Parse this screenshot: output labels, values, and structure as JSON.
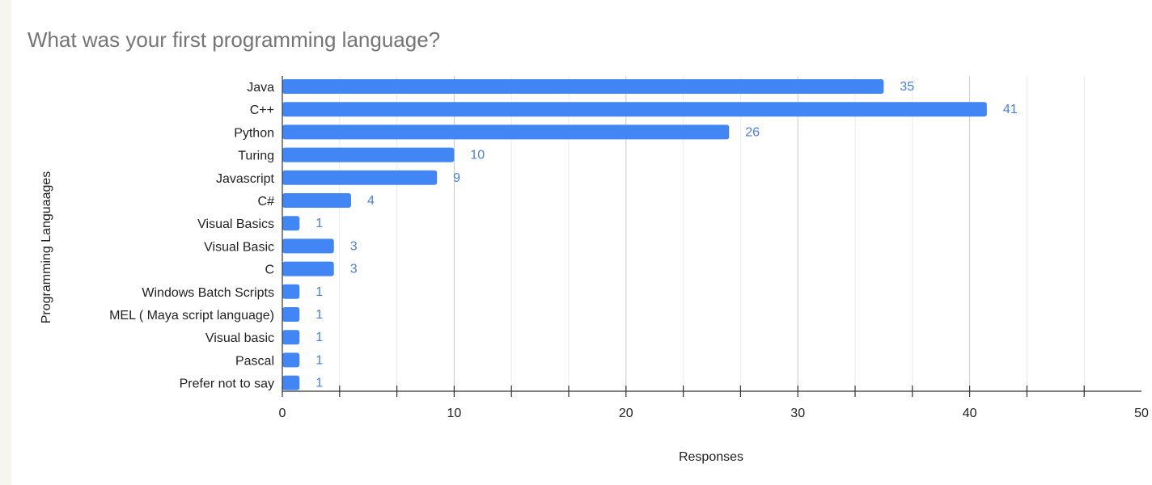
{
  "chart_data": {
    "type": "bar",
    "orientation": "horizontal",
    "title": "What was your first programming language?",
    "xlabel": "Responses",
    "ylabel": "Programming Languaages",
    "xlim": [
      0,
      50
    ],
    "x_ticks": [
      0,
      10,
      20,
      30,
      40,
      50
    ],
    "grid": true,
    "legend": "none",
    "bar_color": "#4285f4",
    "label_color": "#4a7fe0",
    "categories": [
      "Java",
      "C++",
      "Python",
      "Turing",
      "Javascript",
      "C#",
      "Visual Basics",
      "Visual Basic",
      "C",
      "Windows Batch Scripts",
      "MEL ( Maya script language)",
      "Visual basic",
      "Pascal",
      "Prefer not to say"
    ],
    "values": [
      35,
      41,
      26,
      10,
      9,
      4,
      1,
      3,
      3,
      1,
      1,
      1,
      1,
      1
    ]
  }
}
